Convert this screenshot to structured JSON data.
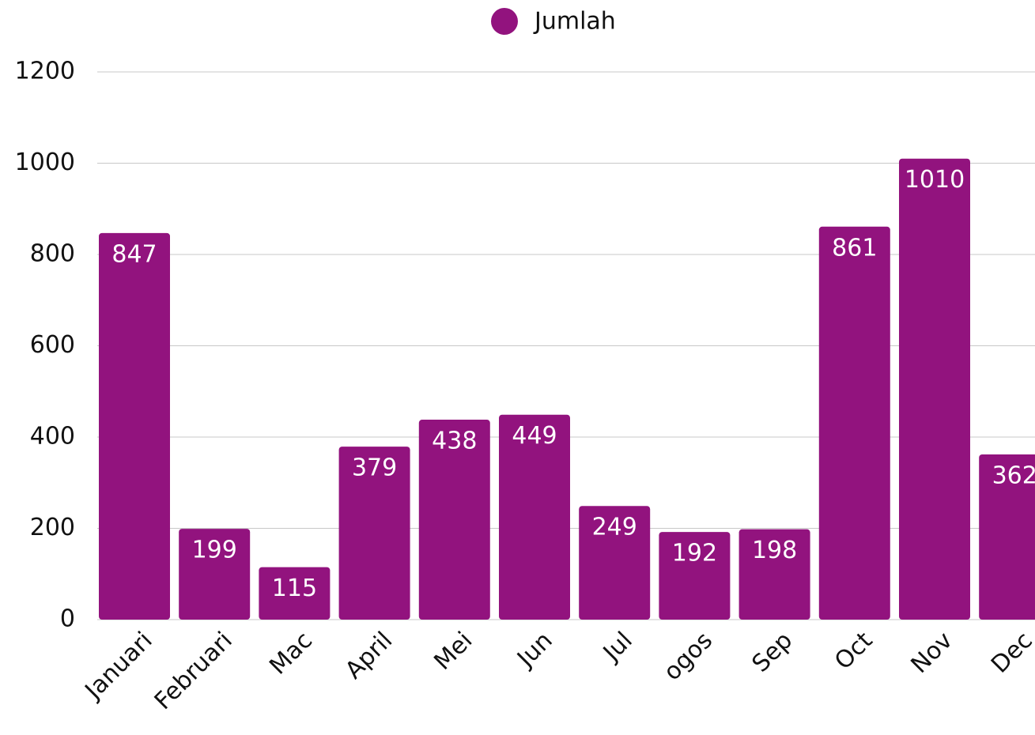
{
  "chart_data": {
    "type": "bar",
    "categories": [
      "Januari",
      "Februari",
      "Mac",
      "April",
      "Mei",
      "Jun",
      "Jul",
      "ogos",
      "Sep",
      "Oct",
      "Nov",
      "Dec"
    ],
    "series": [
      {
        "name": "Jumlah",
        "color": "#92137e",
        "values": [
          847,
          199,
          115,
          379,
          438,
          449,
          249,
          192,
          198,
          861,
          1010,
          362
        ]
      }
    ],
    "ylim": [
      0,
      1200
    ],
    "yticks": [
      0,
      200,
      400,
      600,
      800,
      1000,
      1200
    ],
    "grid": true,
    "legend": "top"
  }
}
